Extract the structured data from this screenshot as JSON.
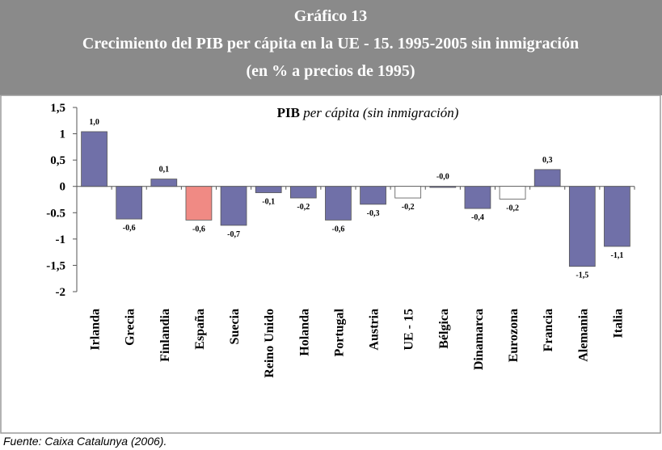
{
  "chart_data": {
    "type": "bar",
    "figure_label": "Gráfico 13",
    "title": "Crecimiento del PIB per cápita en la UE - 15. 1995-2005 sin inmigración",
    "subtitle": "(en % a precios de 1995)",
    "annotation": {
      "bold": "PIB",
      "italic": "per cápita (sin inmigración)"
    },
    "source": "Fuente: Caixa Catalunya (2006).",
    "categories": [
      "Irlanda",
      "Grecia",
      "Finlandia",
      "España",
      "Suecia",
      "Reino Unido",
      "Holanda",
      "Portugal",
      "Austria",
      "UE - 15",
      "Bélgica",
      "Dinamarca",
      "Eurozona",
      "Francia",
      "Alemania",
      "Italia"
    ],
    "values": [
      1.04,
      -0.62,
      0.14,
      -0.64,
      -0.74,
      -0.12,
      -0.22,
      -0.64,
      -0.34,
      -0.22,
      -0.02,
      -0.42,
      -0.24,
      0.32,
      -1.52,
      -1.14
    ],
    "value_labels": [
      "1,0",
      "-0,6",
      "0,1",
      "-0,6",
      "-0,7",
      "-0,1",
      "-0,2",
      "-0,6",
      "-0,3",
      "-0,2",
      "-0,0",
      "-0,4",
      "-0,2",
      "0,3",
      "-1,5",
      "-1,1"
    ],
    "colors": [
      "#7070a8",
      "#7070a8",
      "#7070a8",
      "#f08a84",
      "#7070a8",
      "#7070a8",
      "#7070a8",
      "#7070a8",
      "#7070a8",
      "#ffffff",
      "#7070a8",
      "#7070a8",
      "#ffffff",
      "#7070a8",
      "#7070a8",
      "#7070a8"
    ],
    "ylim": [
      -2,
      1.5
    ],
    "yticks": [
      {
        "value": 1.5,
        "label": "1,5"
      },
      1,
      {
        "value": 0.5,
        "label": "0,5"
      },
      0,
      -0.5,
      -1,
      {
        "value": -1.5,
        "label": "-1,5"
      },
      -2
    ],
    "grid": false
  }
}
